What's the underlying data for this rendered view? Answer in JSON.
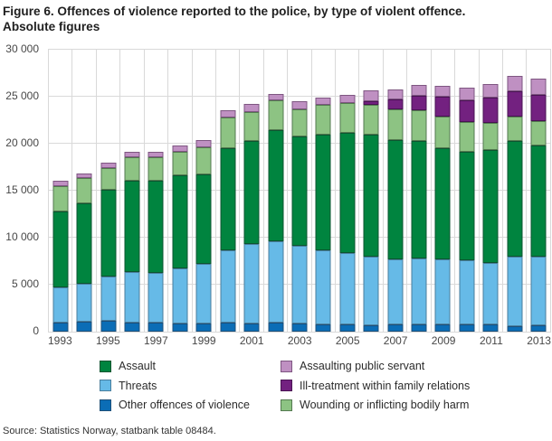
{
  "title": {
    "line1": "Figure 6. Offences of violence reported to the police, by type of violent offence.",
    "line2": "Absolute figures"
  },
  "source": "Source: Statistics Norway, statbank table 08484.",
  "y_axis": {
    "tick_labels": [
      "30 000",
      "25 000",
      "20 000",
      "15 000",
      "10 000",
      "5 000",
      "0"
    ],
    "max": 30000,
    "step": 5000
  },
  "x_axis": {
    "tick_labels": [
      "1993",
      "1995",
      "1997",
      "1999",
      "2001",
      "2003",
      "2005",
      "2007",
      "2009",
      "2011",
      "2013"
    ]
  },
  "chart_data": {
    "type": "bar",
    "stacked": true,
    "title": "Figure 6. Offences of violence reported to the police, by type of violent offence. Absolute figures",
    "xlabel": "",
    "ylabel": "",
    "ylim": [
      0,
      30000
    ],
    "grid": true,
    "legend_position": "bottom",
    "categories": [
      "1993",
      "1994",
      "1995",
      "1996",
      "1997",
      "1998",
      "1999",
      "2000",
      "2001",
      "2002",
      "2003",
      "2004",
      "2005",
      "2006",
      "2007",
      "2008",
      "2009",
      "2010",
      "2011",
      "2012",
      "2013"
    ],
    "series": [
      {
        "name": "Other offences of violence",
        "color": "#0b6db6",
        "border": "#1d4f78",
        "values": [
          950,
          1050,
          1200,
          950,
          950,
          850,
          900,
          950,
          900,
          950,
          850,
          750,
          750,
          700,
          750,
          800,
          750,
          750,
          800,
          600,
          700
        ]
      },
      {
        "name": "Threats",
        "color": "#66bae7",
        "border": "#4a7e9d",
        "values": [
          3750,
          4050,
          4700,
          5350,
          5300,
          5850,
          6300,
          7750,
          8450,
          8650,
          8300,
          7900,
          7650,
          7300,
          6950,
          7000,
          6950,
          6850,
          6550,
          7400,
          7250
        ]
      },
      {
        "name": "Assault",
        "color": "#00843f",
        "border": "#0b5530",
        "values": [
          8100,
          8550,
          9200,
          9800,
          9800,
          9950,
          9550,
          10800,
          10950,
          11800,
          11650,
          12350,
          12750,
          12950,
          12700,
          12500,
          11850,
          11550,
          12000,
          12300,
          11850
        ]
      },
      {
        "name": "Wounding or inflicting bodily harm",
        "color": "#8dc383",
        "border": "#547a50",
        "values": [
          2700,
          2700,
          2300,
          2500,
          2500,
          2500,
          2900,
          3250,
          3100,
          3200,
          2900,
          3150,
          3150,
          3150,
          3250,
          3250,
          3300,
          3150,
          2900,
          2600,
          2600
        ]
      },
      {
        "name": "Ill-treatment within family relations",
        "color": "#732180",
        "border": "#491253",
        "values": [
          0,
          0,
          0,
          0,
          0,
          0,
          0,
          0,
          0,
          0,
          0,
          0,
          0,
          400,
          1050,
          1500,
          2150,
          2300,
          2650,
          2700,
          2800
        ]
      },
      {
        "name": "Assaulting public servant",
        "color": "#bf90c2",
        "border": "#7e5681",
        "values": [
          600,
          500,
          600,
          550,
          600,
          650,
          700,
          800,
          800,
          700,
          800,
          800,
          850,
          1150,
          1050,
          1200,
          1150,
          1350,
          1400,
          1650,
          1750
        ]
      }
    ],
    "totals": [
      16100,
      16850,
      18000,
      19150,
      19150,
      19800,
      20350,
      23550,
      24200,
      25300,
      24500,
      24950,
      25150,
      25650,
      25750,
      26250,
      26150,
      25950,
      26300,
      27250,
      26950
    ],
    "legend": {
      "columns": [
        [
          "Assault",
          "Threats",
          "Other offences of violence"
        ],
        [
          "Assaulting public servant",
          "Ill-treatment within family relations",
          "Wounding or inflicting bodily harm"
        ]
      ]
    }
  }
}
